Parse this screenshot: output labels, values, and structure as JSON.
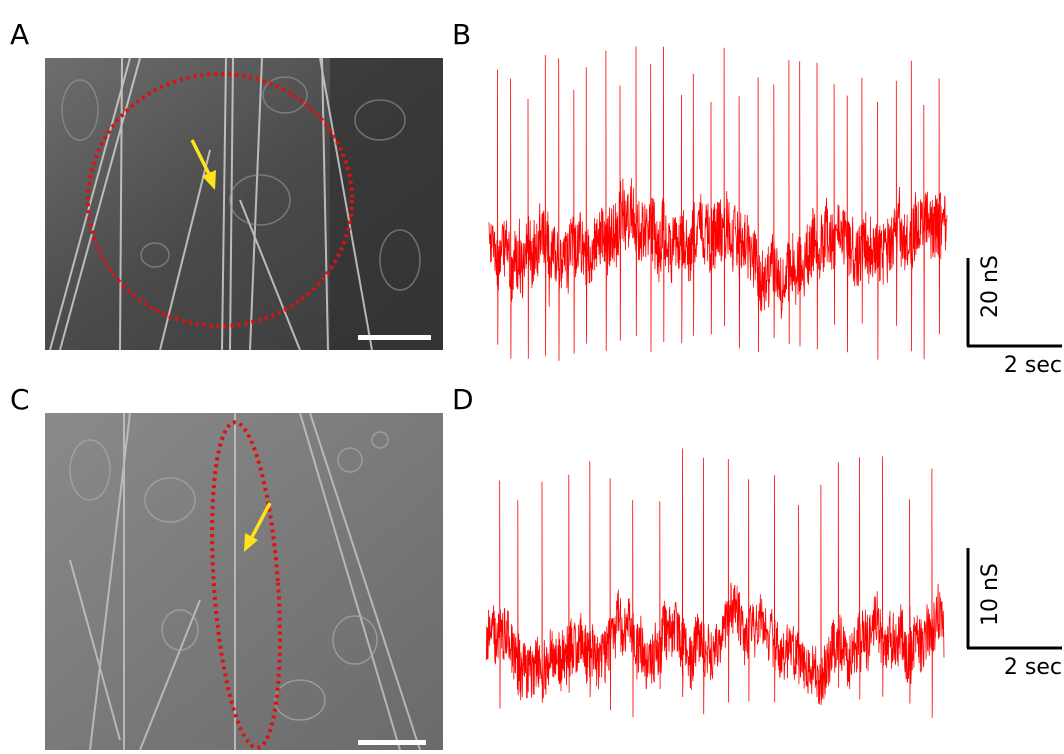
{
  "panels": [
    {
      "label": "A"
    },
    {
      "label": "B",
      "scale_y": "20 nS",
      "scale_x": "2 sec"
    },
    {
      "label": "C"
    },
    {
      "label": "D",
      "scale_y": "10 nS",
      "scale_x": "2 sec"
    }
  ]
}
